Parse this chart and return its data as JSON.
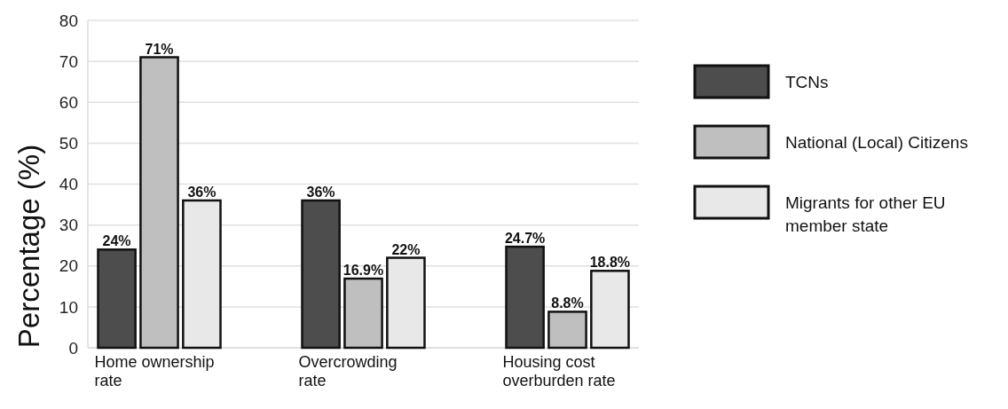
{
  "chart_data": {
    "type": "bar",
    "ylabel": "Percentage (%)",
    "categories": [
      "Home ownership rate",
      "Overcrowding rate",
      "Housing cost overburden rate"
    ],
    "series": [
      {
        "name": "TCNs",
        "color": "#4d4d4d",
        "values": [
          24,
          36,
          24.7
        ],
        "value_labels": [
          "24%",
          "36%",
          "24.7%"
        ]
      },
      {
        "name": "National (Local) Citizens",
        "color": "#bfbfbf",
        "values": [
          71,
          16.9,
          8.8
        ],
        "value_labels": [
          "71%",
          "16.9%",
          "8.8%"
        ]
      },
      {
        "name": "Migrants for other EU member state",
        "color": "#e8e8e8",
        "values": [
          36,
          22,
          18.8
        ],
        "value_labels": [
          "36%",
          "22%",
          "18.8%"
        ]
      }
    ],
    "ylim": [
      0,
      80
    ],
    "yticks": [
      0,
      10,
      20,
      30,
      40,
      50,
      60,
      70,
      80
    ],
    "grid": "y",
    "legend": "right"
  }
}
